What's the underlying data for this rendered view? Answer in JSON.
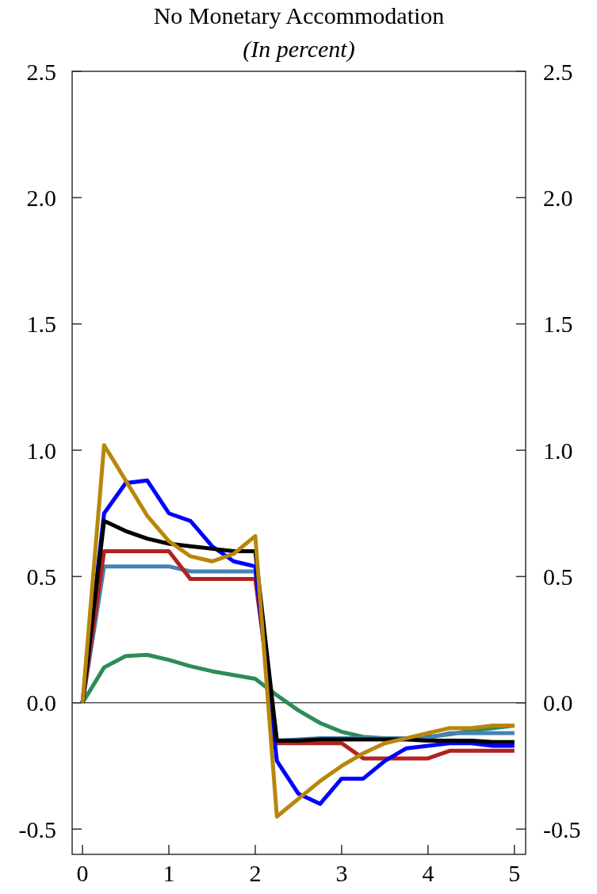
{
  "chart_data": {
    "type": "line",
    "title": "No Monetary Accommodation",
    "subtitle": "(In percent)",
    "x": [
      0,
      0.25,
      0.5,
      0.75,
      1,
      1.25,
      1.5,
      1.75,
      2,
      2.25,
      2.5,
      2.75,
      3,
      3.25,
      3.5,
      3.75,
      4,
      4.25,
      4.5,
      4.75,
      5
    ],
    "series": [
      {
        "color": "#2e8b57",
        "values": [
          0,
          0.14,
          0.185,
          0.19,
          0.17,
          0.145,
          0.125,
          0.11,
          0.095,
          0.03,
          -0.03,
          -0.08,
          -0.115,
          -0.135,
          -0.14,
          -0.14,
          -0.135,
          -0.125,
          -0.11,
          -0.1,
          -0.09
        ]
      },
      {
        "color": "#4682b4",
        "values": [
          0,
          0.54,
          0.54,
          0.54,
          0.54,
          0.52,
          0.52,
          0.52,
          0.52,
          -0.15,
          -0.145,
          -0.14,
          -0.14,
          -0.14,
          -0.14,
          -0.14,
          -0.14,
          -0.12,
          -0.12,
          -0.12,
          -0.12
        ]
      },
      {
        "color": "#b22222",
        "values": [
          0,
          0.6,
          0.6,
          0.6,
          0.6,
          0.49,
          0.49,
          0.49,
          0.49,
          -0.16,
          -0.16,
          -0.16,
          -0.16,
          -0.22,
          -0.22,
          -0.22,
          -0.22,
          -0.19,
          -0.19,
          -0.19,
          -0.19
        ]
      },
      {
        "color": "#0000ff",
        "values": [
          0,
          0.75,
          0.87,
          0.88,
          0.75,
          0.72,
          0.62,
          0.56,
          0.54,
          -0.23,
          -0.36,
          -0.4,
          -0.3,
          -0.3,
          -0.23,
          -0.18,
          -0.17,
          -0.16,
          -0.16,
          -0.17,
          -0.17
        ]
      },
      {
        "color": "#000000",
        "values": [
          0,
          0.72,
          0.68,
          0.65,
          0.63,
          0.62,
          0.61,
          0.6,
          0.6,
          -0.15,
          -0.15,
          -0.145,
          -0.145,
          -0.145,
          -0.145,
          -0.145,
          -0.15,
          -0.15,
          -0.15,
          -0.155,
          -0.155
        ]
      },
      {
        "color": "#b8860b",
        "values": [
          0,
          1.02,
          0.88,
          0.74,
          0.64,
          0.58,
          0.56,
          0.59,
          0.66,
          -0.45,
          -0.38,
          -0.31,
          -0.25,
          -0.2,
          -0.16,
          -0.14,
          -0.12,
          -0.1,
          -0.1,
          -0.09,
          -0.09
        ]
      }
    ],
    "xlim": [
      -0.12,
      5.13
    ],
    "xticks": [
      0,
      1,
      2,
      3,
      4,
      5
    ],
    "ylim": [
      -0.6,
      2.5
    ],
    "yticks": [
      {
        "value": -0.5,
        "label": "-0.5"
      },
      {
        "value": 0,
        "label": "0.0"
      },
      {
        "value": 0.5,
        "label": "0.5"
      },
      {
        "value": 1,
        "label": "1.0"
      },
      {
        "value": 1.5,
        "label": "1.5"
      },
      {
        "value": 2,
        "label": "2.0"
      },
      {
        "value": 2.5,
        "label": "2.5"
      }
    ],
    "y2lim": [
      -0.6,
      2.5
    ],
    "y2ticks": [
      {
        "value": -0.5,
        "label": "-0.5"
      },
      {
        "value": 0,
        "label": "0.0"
      },
      {
        "value": 0.5,
        "label": "0.5"
      },
      {
        "value": 1,
        "label": "1.0"
      },
      {
        "value": 1.5,
        "label": "1.5"
      },
      {
        "value": 2,
        "label": "2.0"
      },
      {
        "value": 2.5,
        "label": "2.5"
      }
    ],
    "ref_lines": [
      {
        "axis": "y",
        "value": 0,
        "color": "#000000"
      }
    ],
    "grid": false,
    "marker": "none",
    "line_style": "solid"
  }
}
